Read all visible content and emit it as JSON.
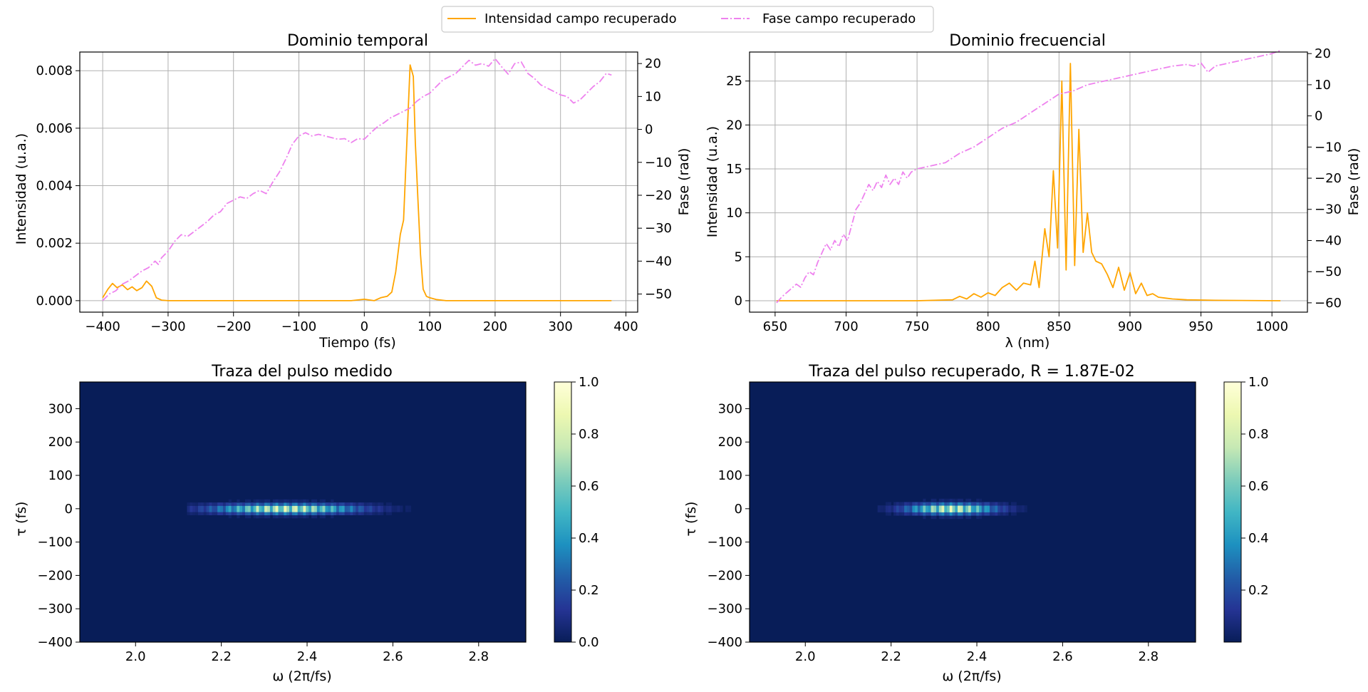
{
  "legend": {
    "items": [
      {
        "label": "Intensidad campo recuperado",
        "color": "#ffa500",
        "style": "solid"
      },
      {
        "label": "Fase campo recuperado",
        "color": "#ee82ee",
        "style": "dashdot"
      }
    ]
  },
  "chart_data": [
    {
      "id": "temporal",
      "type": "line",
      "title": "Dominio temporal",
      "xlabel": "Tiempo (fs)",
      "ylabel": "Intensidad (u.a.)",
      "ylabel_right": "Fase (rad)",
      "xlim": [
        -435,
        418
      ],
      "ylim": [
        -0.0004,
        0.00865
      ],
      "ylim_right": [
        -55.5,
        23.5
      ],
      "grid": true,
      "xticks": [
        -400,
        -300,
        -200,
        -100,
        0,
        100,
        200,
        300,
        400
      ],
      "xtick_labels": [
        "−400",
        "−300",
        "−200",
        "−100",
        "0",
        "100",
        "200",
        "300",
        "400"
      ],
      "yticks": [
        0.0,
        0.002,
        0.004,
        0.006,
        0.008
      ],
      "ytick_labels": [
        "0.000",
        "0.002",
        "0.004",
        "0.006",
        "0.008"
      ],
      "yticks_right": [
        -50,
        -40,
        -30,
        -20,
        -10,
        0,
        10,
        20
      ],
      "ytick_labels_right": [
        "−50",
        "−40",
        "−30",
        "−20",
        "−10",
        "0",
        "10",
        "20"
      ],
      "series": [
        {
          "name": "Intensidad campo recuperado",
          "axis": "left",
          "color": "#ffa500",
          "x": [
            -400,
            -392,
            -385,
            -378,
            -370,
            -362,
            -355,
            -348,
            -340,
            -333,
            -325,
            -318,
            -310,
            -300,
            -250,
            -200,
            -150,
            -100,
            -50,
            -20,
            0,
            15,
            25,
            35,
            42,
            48,
            55,
            60,
            65,
            70,
            75,
            78,
            82,
            86,
            90,
            95,
            100,
            110,
            125,
            140,
            200,
            300,
            378
          ],
          "y": [
            0.0001,
            0.0004,
            0.0006,
            0.00045,
            0.00055,
            0.00038,
            0.00048,
            0.00035,
            0.00045,
            0.00068,
            0.0005,
            0.0001,
            2e-05,
            0.0,
            0.0,
            0.0,
            0.0,
            0.0,
            0.0,
            0.0,
            5e-05,
            0.0,
            0.0001,
            0.00015,
            0.0003,
            0.001,
            0.0023,
            0.0028,
            0.0055,
            0.0082,
            0.0078,
            0.0055,
            0.0035,
            0.0016,
            0.0004,
            0.00015,
            0.0001,
            4e-05,
            0.0,
            0.0,
            0.0,
            0.0,
            0.0
          ]
        },
        {
          "name": "Fase campo recuperado",
          "axis": "right",
          "color": "#ee82ee",
          "x": [
            -400,
            -390,
            -380,
            -370,
            -360,
            -350,
            -340,
            -330,
            -320,
            -315,
            -310,
            -300,
            -290,
            -280,
            -270,
            -260,
            -250,
            -240,
            -230,
            -220,
            -210,
            -200,
            -190,
            -180,
            -170,
            -160,
            -150,
            -140,
            -130,
            -120,
            -110,
            -100,
            -90,
            -80,
            -70,
            -60,
            -50,
            -40,
            -30,
            -20,
            -10,
            0,
            10,
            20,
            30,
            40,
            50,
            60,
            70,
            80,
            90,
            100,
            110,
            120,
            130,
            140,
            150,
            160,
            170,
            180,
            190,
            200,
            210,
            220,
            230,
            240,
            250,
            260,
            270,
            280,
            290,
            300,
            310,
            320,
            330,
            340,
            350,
            360,
            370,
            378
          ],
          "y": [
            -52,
            -50,
            -49,
            -47,
            -46,
            -44.5,
            -43,
            -42,
            -40,
            -41,
            -39,
            -37,
            -34,
            -32,
            -32.5,
            -31,
            -29.5,
            -28,
            -26,
            -25,
            -22.5,
            -21.5,
            -20.5,
            -21,
            -19.5,
            -18.5,
            -19.5,
            -16,
            -13,
            -9,
            -4.5,
            -2,
            -1,
            -2,
            -1.5,
            -2,
            -2.5,
            -3,
            -2.8,
            -4,
            -2.8,
            -3,
            -1,
            0.8,
            2,
            3.5,
            4.5,
            5.5,
            6.5,
            8.5,
            10,
            11,
            13,
            15,
            16,
            17,
            19,
            21,
            19.5,
            20,
            19.2,
            21.5,
            19,
            16.8,
            20,
            20.5,
            17,
            15.5,
            13.5,
            12.5,
            11.5,
            10.5,
            10,
            8,
            9,
            11,
            13,
            14.5,
            17,
            16.5
          ]
        }
      ]
    },
    {
      "id": "frecuencial",
      "type": "line",
      "title": "Dominio frecuencial",
      "xlabel": "λ (nm)",
      "ylabel": "Intensidad (u.a.)",
      "ylabel_right": "Fase (rad)",
      "xlim": [
        632,
        1025
      ],
      "ylim": [
        -1.3,
        28.3
      ],
      "ylim_right": [
        -63,
        20.5
      ],
      "grid": true,
      "xticks": [
        650,
        700,
        750,
        800,
        850,
        900,
        950,
        1000
      ],
      "xtick_labels": [
        "650",
        "700",
        "750",
        "800",
        "850",
        "900",
        "950",
        "1000"
      ],
      "yticks": [
        0,
        5,
        10,
        15,
        20,
        25
      ],
      "ytick_labels": [
        "0",
        "5",
        "10",
        "15",
        "20",
        "25"
      ],
      "yticks_right": [
        -60,
        -50,
        -40,
        -30,
        -20,
        -10,
        0,
        10,
        20
      ],
      "ytick_labels_right": [
        "−60",
        "−50",
        "−40",
        "−30",
        "−20",
        "−10",
        "0",
        "10",
        "20"
      ],
      "series": [
        {
          "name": "Intensidad campo recuperado",
          "axis": "left",
          "color": "#ffa500",
          "x": [
            651,
            700,
            750,
            775,
            780,
            785,
            790,
            795,
            800,
            805,
            810,
            815,
            820,
            825,
            830,
            833,
            836,
            840,
            843,
            846,
            849,
            852,
            855,
            858,
            861,
            864,
            867,
            870,
            873,
            876,
            880,
            884,
            888,
            892,
            896,
            900,
            904,
            908,
            912,
            916,
            920,
            925,
            930,
            940,
            960,
            1006
          ],
          "y": [
            0,
            0,
            0,
            0.1,
            0.5,
            0.2,
            0.8,
            0.4,
            0.9,
            0.6,
            1.5,
            2.0,
            1.2,
            2.0,
            1.8,
            4.5,
            1.5,
            8.2,
            5.0,
            14.8,
            6.0,
            25.0,
            3.5,
            27.0,
            4.0,
            19.5,
            5.5,
            10.0,
            5.5,
            4.5,
            4.2,
            3.0,
            1.5,
            3.8,
            1.2,
            3.2,
            0.8,
            2.0,
            0.6,
            0.8,
            0.4,
            0.3,
            0.2,
            0.1,
            0.05,
            0.0
          ]
        },
        {
          "name": "Fase campo recuperado",
          "axis": "right",
          "color": "#ee82ee",
          "x": [
            651,
            655,
            660,
            665,
            668,
            671,
            674,
            677,
            680,
            683,
            686,
            689,
            692,
            695,
            698,
            701,
            704,
            707,
            710,
            713,
            716,
            719,
            722,
            725,
            728,
            731,
            734,
            737,
            740,
            743,
            746,
            750,
            760,
            770,
            780,
            790,
            800,
            810,
            820,
            830,
            840,
            850,
            860,
            870,
            880,
            890,
            900,
            910,
            920,
            930,
            940,
            945,
            950,
            955,
            960,
            970,
            980,
            990,
            1000,
            1006
          ],
          "y": [
            -60,
            -58,
            -56,
            -54,
            -55,
            -52,
            -50,
            -51,
            -47,
            -44,
            -41,
            -43,
            -40,
            -42,
            -38,
            -40,
            -35,
            -30,
            -28,
            -25,
            -22,
            -24,
            -21,
            -23,
            -19,
            -22,
            -20,
            -22,
            -18,
            -20,
            -18,
            -17,
            -16,
            -15,
            -12,
            -10,
            -7,
            -4,
            -2,
            1,
            4,
            7,
            8,
            10,
            11,
            12,
            13,
            14,
            15,
            16,
            16.5,
            16,
            17,
            14,
            16,
            17,
            18,
            19,
            20,
            21
          ]
        }
      ]
    },
    {
      "id": "medido",
      "type": "heatmap",
      "title": "Traza del pulso medido",
      "xlabel": "ω (2π/fs)",
      "ylabel": "τ (fs)",
      "xlim": [
        1.87,
        2.91
      ],
      "ylim": [
        -400,
        380
      ],
      "xticks": [
        2.0,
        2.2,
        2.4,
        2.6,
        2.8
      ],
      "xtick_labels": [
        "2.0",
        "2.2",
        "2.4",
        "2.6",
        "2.8"
      ],
      "yticks": [
        -400,
        -300,
        -200,
        -100,
        0,
        100,
        200,
        300
      ],
      "ytick_labels": [
        "−400",
        "−300",
        "−200",
        "−100",
        "0",
        "100",
        "200",
        "300"
      ],
      "colorbar": {
        "range": [
          0,
          1
        ],
        "ticks": [
          0.0,
          0.2,
          0.4,
          0.6,
          0.8,
          1.0
        ],
        "tick_labels": [
          "0.0",
          "0.2",
          "0.4",
          "0.6",
          "0.8",
          "1.0"
        ]
      },
      "colormap": [
        "#081d58",
        "#253494",
        "#225ea8",
        "#1d91c0",
        "#41b6c4",
        "#7fcdbb",
        "#c7e9b4",
        "#edf8b1",
        "#ffffd9"
      ],
      "spot": {
        "center_omega": 2.35,
        "omega_sigma": 0.16,
        "omega_min": 2.12,
        "omega_max": 2.7,
        "center_tau": 0,
        "tau_sigma": 14,
        "peak": 1.0,
        "fringe_period": 0.022
      }
    },
    {
      "id": "recuperado",
      "type": "heatmap",
      "title": "Traza del pulso recuperado, R = 1.87E-02",
      "xlabel": "ω (2π/fs)",
      "ylabel": "τ (fs)",
      "xlim": [
        1.87,
        2.91
      ],
      "ylim": [
        -400,
        380
      ],
      "xticks": [
        2.0,
        2.2,
        2.4,
        2.6,
        2.8
      ],
      "xtick_labels": [
        "2.0",
        "2.2",
        "2.4",
        "2.6",
        "2.8"
      ],
      "yticks": [
        -400,
        -300,
        -200,
        -100,
        0,
        100,
        200,
        300
      ],
      "ytick_labels": [
        "−400",
        "−300",
        "−200",
        "−100",
        "0",
        "100",
        "200",
        "300"
      ],
      "colorbar": {
        "range": [
          0,
          1
        ],
        "ticks": [
          0.2,
          0.4,
          0.6,
          0.8,
          1.0
        ],
        "tick_labels": [
          "0.2",
          "0.4",
          "0.6",
          "0.8",
          "1.0"
        ]
      },
      "colormap": [
        "#081d58",
        "#253494",
        "#225ea8",
        "#1d91c0",
        "#41b6c4",
        "#7fcdbb",
        "#c7e9b4",
        "#edf8b1",
        "#ffffd9"
      ],
      "spot": {
        "center_omega": 2.34,
        "omega_sigma": 0.1,
        "omega_min": 2.1,
        "omega_max": 2.66,
        "center_tau": 0,
        "tau_sigma": 15,
        "peak": 1.0,
        "fringe_period": 0.021
      }
    }
  ]
}
